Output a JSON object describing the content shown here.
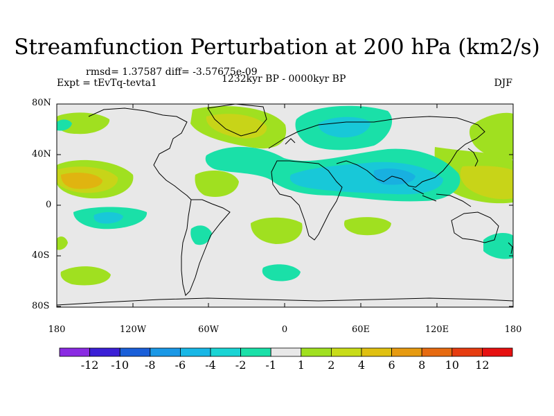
{
  "title": "Streamfunction Perturbation at 200 hPa (km2/s)",
  "stats_line": "rmsd= 1.37587 diff= -3.57675e-09",
  "experiment": "Expt = tEvTq-tevta1",
  "period": "1232kyr BP - 0000kyr BP",
  "season": "DJF",
  "lat_labels": [
    "80N",
    "40N",
    "0",
    "40S",
    "80S"
  ],
  "lon_labels": [
    "180",
    "120W",
    "60W",
    "0",
    "60E",
    "120E",
    "180"
  ],
  "colorbar": {
    "labels": [
      "-12",
      "-10",
      "-8",
      "-6",
      "-4",
      "-2",
      "-1",
      "1",
      "2",
      "4",
      "6",
      "8",
      "10",
      "12"
    ],
    "colors": [
      "#8a2be2",
      "#3b1fd6",
      "#1a5fd9",
      "#1a98e6",
      "#18b7e6",
      "#1ad4d4",
      "#1ae0a8",
      "#e8e8e8",
      "#a0e020",
      "#c8dc18",
      "#e0c010",
      "#e69a10",
      "#e66a10",
      "#e63c10",
      "#e61010"
    ]
  },
  "map_colors": {
    "background": "#e8e8e8",
    "coast": "#000000",
    "neg1": "#1ae0a8",
    "neg2": "#18c8d8",
    "neg3": "#18b0e0",
    "pos1": "#a0e020",
    "pos2": "#c8d418",
    "pos3": "#e0b410"
  }
}
